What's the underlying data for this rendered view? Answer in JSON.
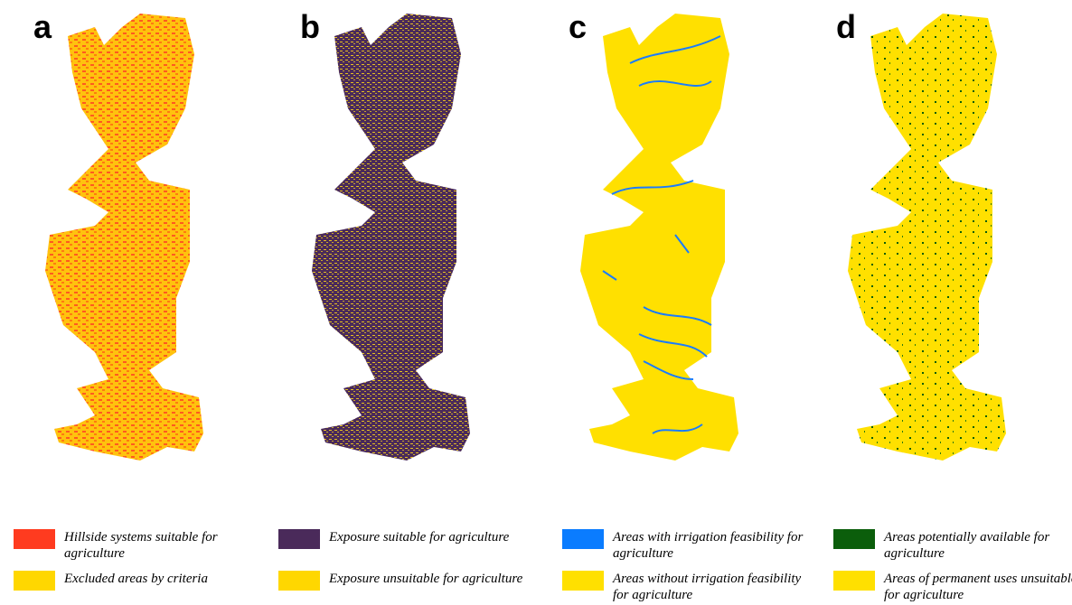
{
  "panels": [
    {
      "label": "a",
      "legend": [
        {
          "text": "Hillside systems suitable for agriculture",
          "color": "#ff3b1f"
        },
        {
          "text": "Excluded areas by criteria",
          "color": "#ffd700"
        }
      ]
    },
    {
      "label": "b",
      "legend": [
        {
          "text": "Exposure suitable for agriculture",
          "color": "#4a2a5a"
        },
        {
          "text": "Exposure unsuitable for agriculture",
          "color": "#ffd700"
        }
      ]
    },
    {
      "label": "c",
      "legend": [
        {
          "text": "Areas with irrigation feasibility for agriculture",
          "color": "#0a7cff"
        },
        {
          "text": "Areas without irrigation feasibility for agriculture",
          "color": "#ffe000"
        }
      ]
    },
    {
      "label": "d",
      "legend": [
        {
          "text": "Areas potentially available for agriculture",
          "color": "#0b5e0b"
        },
        {
          "text": "Areas of permanent uses unsuitable for agriculture",
          "color": "#ffe000"
        }
      ]
    }
  ]
}
